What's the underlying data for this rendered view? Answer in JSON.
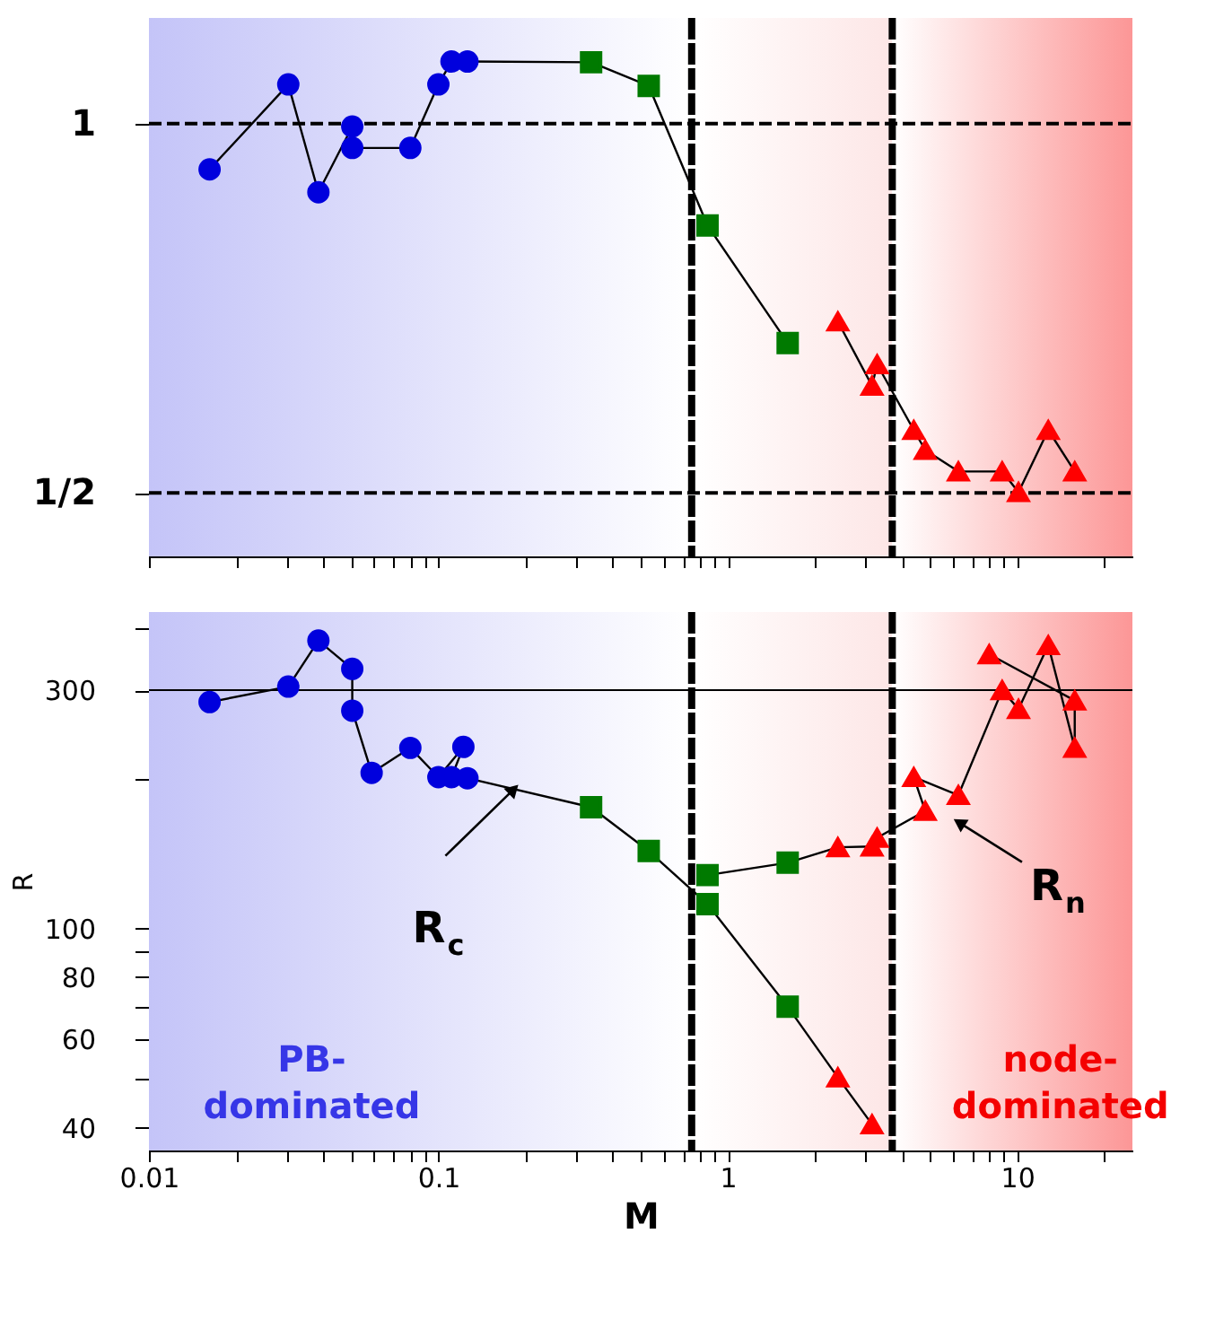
{
  "chart_data": [
    {
      "type": "line",
      "log": "x",
      "xlim": [
        0.01,
        25
      ],
      "ylim": [
        0.414,
        1.143
      ],
      "tick_labels": "y",
      "grid": false,
      "xticks": [
        0.01,
        {
          "value": 0.02,
          "label": null
        },
        {
          "value": 0.03,
          "label": null
        },
        {
          "value": 0.04,
          "label": null
        },
        {
          "value": 0.05,
          "label": null
        },
        {
          "value": 0.06,
          "label": null
        },
        {
          "value": 0.07,
          "label": null
        },
        {
          "value": 0.08,
          "label": null
        },
        {
          "value": 0.09,
          "label": null
        },
        0.1,
        {
          "value": 0.2,
          "label": null
        },
        {
          "value": 0.3,
          "label": null
        },
        {
          "value": 0.4,
          "label": null
        },
        {
          "value": 0.5,
          "label": null
        },
        {
          "value": 0.6,
          "label": null
        },
        {
          "value": 0.7,
          "label": null
        },
        {
          "value": 0.8,
          "label": null
        },
        {
          "value": 0.9,
          "label": null
        },
        1,
        {
          "value": 2,
          "label": null
        },
        {
          "value": 3,
          "label": null
        },
        {
          "value": 4,
          "label": null
        },
        {
          "value": 5,
          "label": null
        },
        {
          "value": 6,
          "label": null
        },
        {
          "value": 7,
          "label": null
        },
        {
          "value": 8,
          "label": null
        },
        {
          "value": 9,
          "label": null
        },
        10,
        {
          "value": 20,
          "label": null
        }
      ],
      "yticks": [
        {
          "value": 0.5,
          "label": "1/2"
        },
        1
      ],
      "bands": [
        {
          "axis": "x",
          "from": 0.01,
          "to": 0.75,
          "color": "#c4c4f8"
        },
        {
          "axis": "x",
          "from": 0.75,
          "to": 3.7,
          "color": "#fde6e6"
        },
        {
          "axis": "x",
          "from": 3.7,
          "to": 25,
          "color": "#fc9696"
        }
      ],
      "ref_lines": [
        {
          "axis": "y",
          "value": 1,
          "line_style": "dashed",
          "color": "#000000"
        },
        {
          "axis": "y",
          "value": 0.5,
          "line_style": "dashed",
          "color": "#000000"
        },
        {
          "axis": "x",
          "value": 0.75,
          "line_style": "dashed",
          "color": "#000000"
        },
        {
          "axis": "x",
          "value": 3.7,
          "line_style": "dashed",
          "color": "#000000"
        }
      ],
      "series": [
        {
          "color": "#000000",
          "marker": "none",
          "x": [
            0.0162,
            0.0303,
            0.0385,
            0.0504,
            0.0504,
            0.08,
            0.1,
            0.111,
            0.126,
            0.337,
            0.533,
            0.851,
            1.61
          ],
          "values": [
            0.938,
            1.053,
            0.907,
            0.996,
            0.967,
            0.967,
            1.053,
            1.084,
            1.084,
            1.083,
            1.051,
            0.862,
            0.703
          ]
        },
        {
          "color": "#000000",
          "marker": "none",
          "x": [
            2.4,
            3.15,
            3.28,
            4.39,
            4.81,
            6.26,
            8.87,
            10.1,
            12.8,
            15.8
          ],
          "values": [
            0.732,
            0.645,
            0.674,
            0.585,
            0.558,
            0.529,
            0.529,
            0.501,
            0.585,
            0.529
          ]
        },
        {
          "type": "scatter",
          "color": "#0000dd",
          "marker": "circle",
          "x": [
            0.0162,
            0.0303,
            0.0385,
            0.0504,
            0.0504,
            0.08,
            0.1,
            0.111,
            0.126
          ],
          "values": [
            0.938,
            1.053,
            0.907,
            0.996,
            0.967,
            0.967,
            1.053,
            1.084,
            1.084
          ]
        },
        {
          "type": "scatter",
          "color": "#007a00",
          "marker": "square",
          "x": [
            0.337,
            0.533,
            0.851,
            1.61
          ],
          "values": [
            1.083,
            1.051,
            0.862,
            0.703
          ]
        },
        {
          "type": "scatter",
          "color": "#ff0000",
          "marker": "triangle",
          "x": [
            2.4,
            3.15,
            3.28,
            4.39,
            4.81,
            6.26,
            8.87,
            10.1,
            12.8,
            15.8
          ],
          "values": [
            0.732,
            0.645,
            0.674,
            0.585,
            0.558,
            0.529,
            0.529,
            0.501,
            0.585,
            0.529
          ]
        }
      ]
    },
    {
      "type": "line",
      "log": "xy",
      "xlim": [
        0.01,
        25
      ],
      "ylim": [
        36,
        430
      ],
      "xlabel": "M",
      "ylabel": "R",
      "grid": false,
      "xticks": [
        0.01,
        {
          "value": 0.02,
          "label": null
        },
        {
          "value": 0.03,
          "label": null
        },
        {
          "value": 0.04,
          "label": null
        },
        {
          "value": 0.05,
          "label": null
        },
        {
          "value": 0.06,
          "label": null
        },
        {
          "value": 0.07,
          "label": null
        },
        {
          "value": 0.08,
          "label": null
        },
        {
          "value": 0.09,
          "label": null
        },
        0.1,
        {
          "value": 0.2,
          "label": null
        },
        {
          "value": 0.3,
          "label": null
        },
        {
          "value": 0.4,
          "label": null
        },
        {
          "value": 0.5,
          "label": null
        },
        {
          "value": 0.6,
          "label": null
        },
        {
          "value": 0.7,
          "label": null
        },
        {
          "value": 0.8,
          "label": null
        },
        {
          "value": 0.9,
          "label": null
        },
        1,
        {
          "value": 2,
          "label": null
        },
        {
          "value": 3,
          "label": null
        },
        {
          "value": 4,
          "label": null
        },
        {
          "value": 5,
          "label": null
        },
        {
          "value": 6,
          "label": null
        },
        {
          "value": 7,
          "label": null
        },
        {
          "value": 8,
          "label": null
        },
        {
          "value": 9,
          "label": null
        },
        10,
        {
          "value": 20,
          "label": null
        }
      ],
      "yticks": [
        40,
        {
          "value": 50,
          "label": null
        },
        60,
        {
          "value": 70,
          "label": null
        },
        80,
        {
          "value": 90,
          "label": null
        },
        100,
        {
          "value": 200,
          "label": null
        },
        300,
        {
          "value": 400,
          "label": null
        }
      ],
      "bands": [
        {
          "axis": "x",
          "from": 0.01,
          "to": 0.75,
          "color": "#c4c4f8",
          "label": "PB-\ndominated"
        },
        {
          "axis": "x",
          "from": 0.75,
          "to": 3.7,
          "color": "#fde6e6"
        },
        {
          "axis": "x",
          "from": 3.7,
          "to": 25,
          "color": "#fc9696",
          "label": "node-\ndominated"
        }
      ],
      "ref_lines": [
        {
          "axis": "y",
          "value": 300,
          "line_style": "solid",
          "color": "#000000"
        },
        {
          "axis": "x",
          "value": 0.75,
          "line_style": "dashed",
          "color": "#000000"
        },
        {
          "axis": "x",
          "value": 3.7,
          "line_style": "dashed",
          "color": "#000000"
        }
      ],
      "annotations": [
        {
          "text": "R$_{c}$",
          "x": 0.182,
          "y": 190
        },
        {
          "text": "R$_{n}$",
          "x": 6.3,
          "y": 163
        }
      ],
      "series": [
        {
          "color": "#000000",
          "marker": "none",
          "x": [
            0.0162,
            0.0303,
            0.0385,
            0.0504,
            0.0504,
            0.0588,
            0.08,
            0.1,
            0.122,
            0.111,
            0.126,
            0.337,
            0.533,
            0.851,
            1.61,
            2.4,
            3.15
          ],
          "values": [
            284,
            305,
            377,
            331,
            273,
            205,
            230,
            201,
            231,
            201,
            200,
            175,
            143,
            112,
            69.8,
            50.4,
            40.6
          ]
        },
        {
          "color": "#000000",
          "marker": "none",
          "x": [
            0.851,
            1.61,
            2.4,
            3.15,
            3.28,
            4.81,
            4.39,
            6.26,
            8.87,
            10.1,
            12.8,
            15.8,
            15.8,
            8.0
          ],
          "values": [
            128,
            135.5,
            145.5,
            146,
            152,
            172,
            201,
            185,
            300,
            275,
            369,
            230,
            286,
            354
          ]
        },
        {
          "type": "scatter",
          "color": "#0000dd",
          "marker": "circle",
          "x": [
            0.0162,
            0.0303,
            0.0385,
            0.0504,
            0.0504,
            0.0588,
            0.08,
            0.1,
            0.122,
            0.111,
            0.126
          ],
          "values": [
            284,
            305,
            377,
            331,
            273,
            205,
            230,
            201,
            231,
            201,
            200
          ]
        },
        {
          "type": "scatter",
          "color": "#007a00",
          "marker": "square",
          "x": [
            0.337,
            0.533,
            0.851,
            1.61,
            0.851,
            1.61
          ],
          "values": [
            175,
            143,
            112,
            69.8,
            128,
            135.5
          ]
        },
        {
          "type": "scatter",
          "color": "#ff0000",
          "marker": "triangle",
          "x": [
            2.4,
            3.15,
            3.28,
            4.81,
            4.39,
            6.26,
            8.87,
            10.1,
            12.8,
            15.8,
            15.8,
            8.0,
            2.4,
            3.15
          ],
          "values": [
            145.5,
            146,
            152,
            172,
            201,
            185,
            300,
            275,
            369,
            230,
            286,
            354,
            50.4,
            40.6
          ]
        }
      ]
    }
  ]
}
